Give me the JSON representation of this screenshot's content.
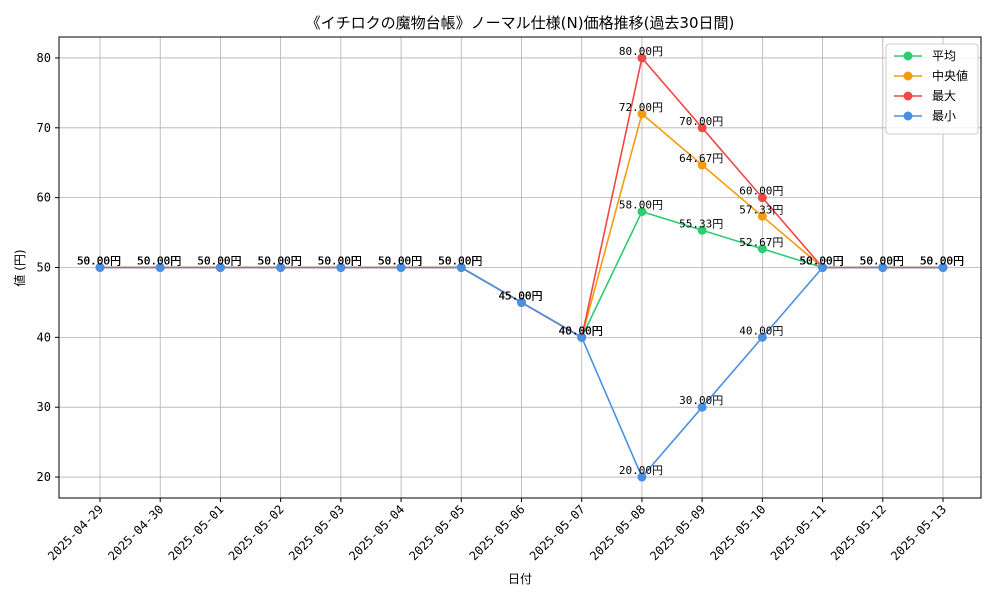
{
  "chart_data": {
    "type": "line",
    "title": "《イチロクの魔物台帳》ノーマル仕様(N)価格推移(過去30日間)",
    "xlabel": "日付",
    "ylabel": "値 (円)",
    "ylim": [
      17,
      83
    ],
    "yticks": [
      20,
      30,
      40,
      50,
      60,
      70,
      80
    ],
    "grid": true,
    "legend_position": "top-right",
    "value_suffix": "円",
    "categories": [
      "2025-04-29",
      "2025-04-30",
      "2025-05-01",
      "2025-05-02",
      "2025-05-03",
      "2025-05-04",
      "2025-05-05",
      "2025-05-06",
      "2025-05-07",
      "2025-05-08",
      "2025-05-09",
      "2025-05-10",
      "2025-05-11",
      "2025-05-12",
      "2025-05-13"
    ],
    "series": [
      {
        "name": "平均",
        "color": "#2ecc71",
        "values": [
          50,
          50,
          50,
          50,
          50,
          50,
          50,
          45,
          40,
          58,
          55.33,
          52.67,
          50,
          50,
          50
        ]
      },
      {
        "name": "中央値",
        "color": "#f39c12",
        "values": [
          50,
          50,
          50,
          50,
          50,
          50,
          50,
          45,
          40,
          72,
          64.67,
          57.33,
          50,
          50,
          50
        ]
      },
      {
        "name": "最大",
        "color": "#f04747",
        "values": [
          50,
          50,
          50,
          50,
          50,
          50,
          50,
          45,
          40,
          80,
          70,
          60,
          50,
          50,
          50
        ]
      },
      {
        "name": "最小",
        "color": "#4a90e2",
        "values": [
          50,
          50,
          50,
          50,
          50,
          50,
          50,
          45,
          40,
          20,
          30,
          40,
          50,
          50,
          50
        ]
      }
    ]
  }
}
